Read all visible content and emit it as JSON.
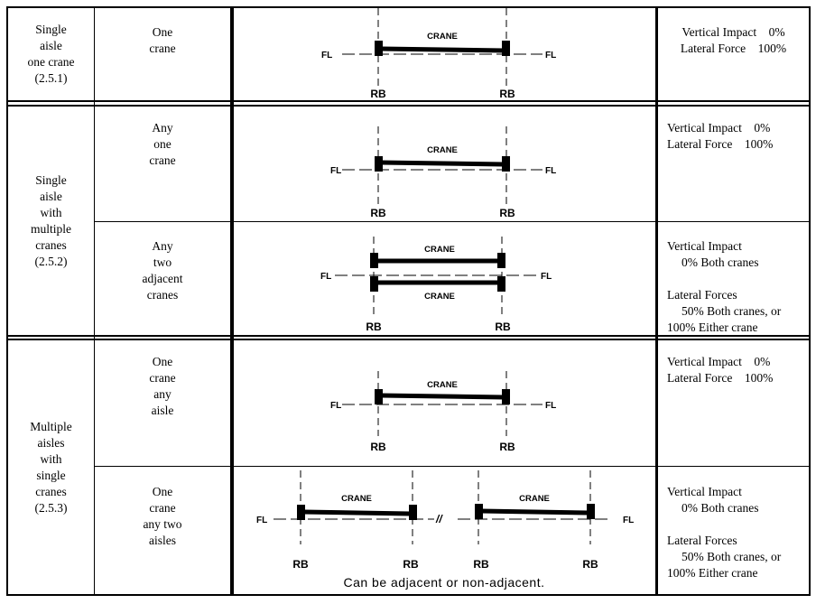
{
  "rows": [
    {
      "case": [
        "Single",
        "aisle",
        "one crane",
        "(2.5.1)"
      ],
      "cranes": [
        "One",
        "crane"
      ],
      "forces": [
        {
          "text": "Vertical Impact    0%",
          "indent": false
        },
        {
          "text": "Lateral Force    100%",
          "indent": false
        }
      ]
    },
    {
      "case": [
        "Single",
        "aisle",
        "with",
        "multiple",
        "cranes",
        "(2.5.2)"
      ],
      "sub": [
        {
          "cranes": [
            "Any",
            "one",
            "crane"
          ],
          "forces": [
            {
              "text": "Vertical Impact    0%",
              "indent": false
            },
            {
              "text": "Lateral Force    100%",
              "indent": false
            }
          ]
        },
        {
          "cranes": [
            "Any",
            "two",
            "adjacent",
            "cranes"
          ],
          "forces": [
            {
              "text": "Vertical Impact",
              "indent": false
            },
            {
              "text": "0% Both cranes",
              "indent": true
            },
            {
              "text": "",
              "indent": false
            },
            {
              "text": "Lateral Forces",
              "indent": false
            },
            {
              "text": "50% Both cranes, or",
              "indent": true
            },
            {
              "text": "100% Either crane",
              "indent": false
            }
          ]
        }
      ]
    },
    {
      "case": [
        "Multiple",
        "aisles",
        "with",
        "single",
        "cranes",
        "(2.5.3)"
      ],
      "sub": [
        {
          "cranes": [
            "One",
            "crane",
            "any",
            "aisle"
          ],
          "forces": [
            {
              "text": "Vertical Impact    0%",
              "indent": false
            },
            {
              "text": "Lateral Force    100%",
              "indent": false
            }
          ]
        },
        {
          "cranes": [
            "One",
            "crane",
            "any two",
            "aisles"
          ],
          "forces": [
            {
              "text": "Vertical Impact",
              "indent": false
            },
            {
              "text": "0% Both cranes",
              "indent": true
            },
            {
              "text": "",
              "indent": false
            },
            {
              "text": "Lateral Forces",
              "indent": false
            },
            {
              "text": "50% Both cranes, or",
              "indent": true
            },
            {
              "text": "100% Either crane",
              "indent": false
            }
          ]
        }
      ]
    }
  ],
  "diagram": {
    "crane": "CRANE",
    "fl": "FL",
    "rb": "RB",
    "note": "Can be adjacent or non-adjacent."
  }
}
